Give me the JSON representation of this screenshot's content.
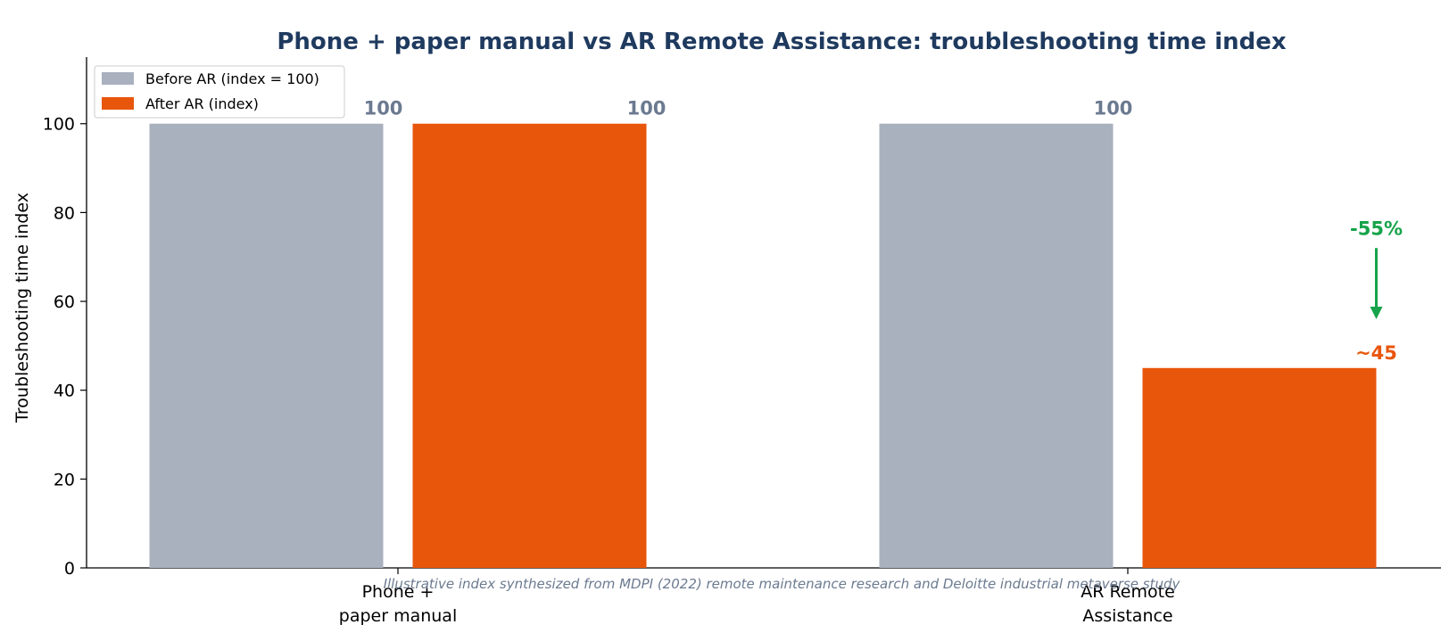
{
  "chart_data": {
    "type": "bar",
    "title": "Phone + paper manual vs AR Remote Assistance: troubleshooting time index",
    "xlabel": "",
    "ylabel": "Troubleshooting time index",
    "ylim": [
      0,
      115
    ],
    "yticks": [
      0,
      20,
      40,
      60,
      80,
      100
    ],
    "categories": [
      [
        "Phone +",
        "paper manual"
      ],
      [
        "AR Remote",
        "Assistance"
      ]
    ],
    "series": [
      {
        "name": "Before AR (index = 100)",
        "color": "#a9b0be",
        "values": [
          100,
          100
        ],
        "labels": [
          "100",
          "100"
        ]
      },
      {
        "name": "After AR (index)",
        "color": "#e8560c",
        "values": [
          100,
          45
        ],
        "labels": [
          "100",
          "~45"
        ]
      }
    ],
    "annotation": {
      "text": "-55%",
      "color": "#16a34a",
      "category_index": 1,
      "from": 72,
      "to": 56
    },
    "legend_position": "top-left",
    "grid": false,
    "footnote": "Illustrative index synthesized from MDPI (2022) remote maintenance research and Deloitte industrial metaverse study",
    "colors": {
      "title": "#1f3a5f",
      "value_label": "#6b7a90",
      "footnote": "#6b7a90"
    }
  }
}
